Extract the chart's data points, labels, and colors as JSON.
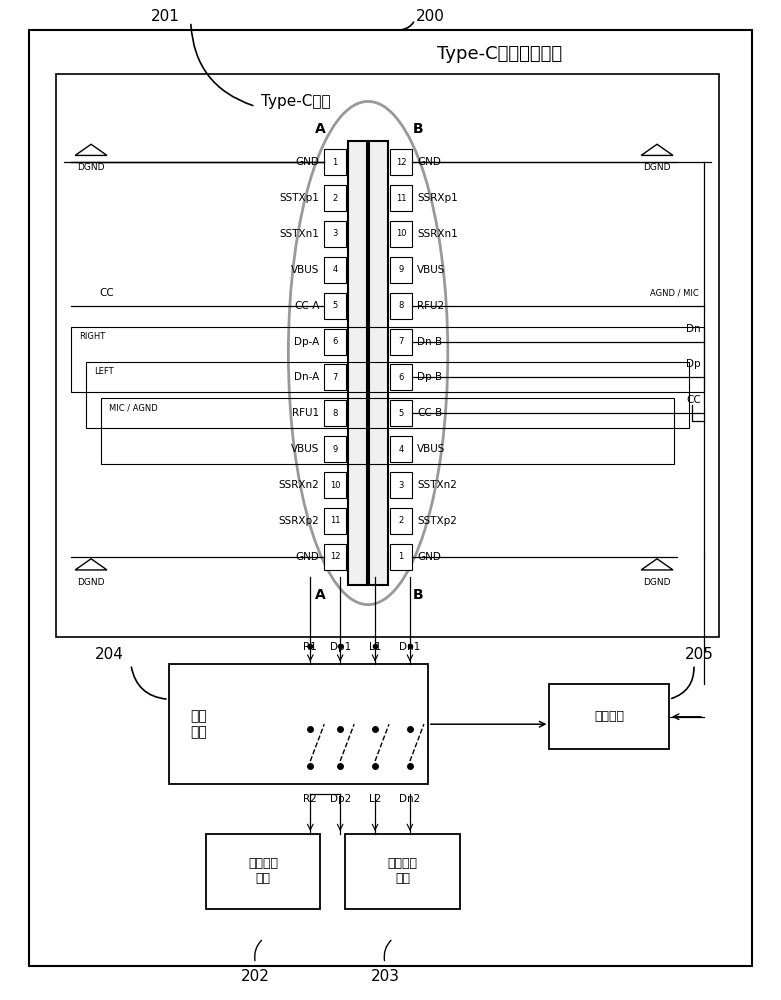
{
  "title": "Type-C接口控制电路",
  "typec_label": "Type-C接口",
  "left_pins": [
    "GND",
    "SSTXp1",
    "SSTXn1",
    "VBUS",
    "CC-A",
    "Dp-A",
    "Dn-A",
    "RFU1",
    "VBUS",
    "SSRXn2",
    "SSRXp2",
    "GND"
  ],
  "left_nums": [
    "1",
    "2",
    "3",
    "4",
    "5",
    "6",
    "7",
    "8",
    "9",
    "10",
    "11",
    "12"
  ],
  "right_pins": [
    "GND",
    "SSRXp1",
    "SSRXn1",
    "VBUS",
    "RFU2",
    "Dn-B",
    "Dp-B",
    "CC-B",
    "VBUS",
    "SSTXn2",
    "SSTXp2",
    "GND"
  ],
  "right_nums": [
    "12",
    "11",
    "10",
    "9",
    "8",
    "7",
    "6",
    "5",
    "4",
    "3",
    "2",
    "1"
  ],
  "switch_label": "开关\n模块",
  "detect_label": "检测模块",
  "module1_label": "第一传输\n模块",
  "module2_label": "第二传输\n模块",
  "bg_color": "#ffffff"
}
